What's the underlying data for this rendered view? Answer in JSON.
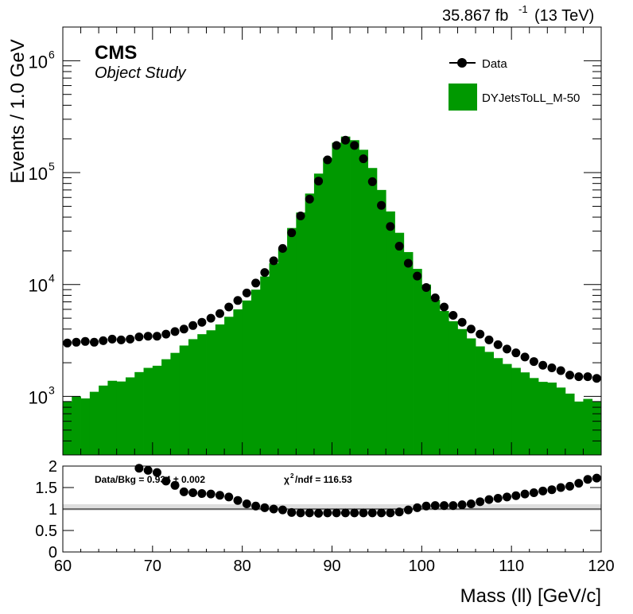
{
  "lumi_label": "35.867 fb",
  "lumi_exponent": "-1",
  "energy_label": "(13 TeV)",
  "cms_label": "CMS",
  "subtitle": "Object Study",
  "colors": {
    "mc_fill": "#009900",
    "data": "#000000"
  },
  "chart_data": [
    {
      "type": "bar",
      "name": "main",
      "ylabel": "Events / 1.0 GeV",
      "yscale": "log",
      "ylim": [
        300,
        2000000
      ],
      "xlim": [
        60,
        120
      ],
      "yticks": [
        {
          "value": 1000,
          "base": "10",
          "exp": "3"
        },
        {
          "value": 10000,
          "base": "10",
          "exp": "4"
        },
        {
          "value": 100000,
          "base": "10",
          "exp": "5"
        },
        {
          "value": 1000000,
          "base": "10",
          "exp": "6"
        }
      ],
      "legend": {
        "placement": "top-right",
        "entries": [
          {
            "label": "Data",
            "style": "marker"
          },
          {
            "label": "DYJetsToLL_M-50",
            "style": "fill"
          }
        ]
      },
      "bin_edges_start": 60,
      "bin_width": 1,
      "series": [
        {
          "name": "DYJetsToLL_M-50",
          "style": "filled-histogram",
          "values": [
            900,
            1000,
            960,
            1100,
            1250,
            1380,
            1360,
            1480,
            1650,
            1800,
            1880,
            2150,
            2450,
            2850,
            3250,
            3600,
            3900,
            4400,
            5150,
            6000,
            7200,
            9000,
            11800,
            15500,
            21000,
            32000,
            44000,
            65000,
            98000,
            135000,
            185000,
            210000,
            195000,
            160000,
            110000,
            70000,
            45000,
            29000,
            19500,
            13800,
            10000,
            7300,
            5800,
            4700,
            4000,
            3300,
            2800,
            2500,
            2200,
            1950,
            1800,
            1640,
            1460,
            1350,
            1330,
            1200,
            1060,
            900,
            950,
            900
          ]
        },
        {
          "name": "Data",
          "style": "marker",
          "values": [
            3000,
            3050,
            3100,
            3050,
            3150,
            3250,
            3200,
            3250,
            3400,
            3450,
            3450,
            3600,
            3800,
            4000,
            4300,
            4600,
            5000,
            5500,
            6300,
            7200,
            8400,
            10300,
            12800,
            16300,
            21000,
            29000,
            41000,
            58000,
            84000,
            130000,
            175000,
            195000,
            175000,
            133000,
            83000,
            51000,
            33000,
            22000,
            15500,
            11900,
            9400,
            7600,
            6300,
            5300,
            4600,
            4000,
            3600,
            3200,
            2900,
            2650,
            2450,
            2250,
            2050,
            1900,
            1800,
            1700,
            1550,
            1500,
            1500,
            1450
          ]
        }
      ]
    },
    {
      "type": "scatter",
      "name": "ratio",
      "xlabel": "Mass (ll) [GeV/c]",
      "ylim": [
        0,
        2
      ],
      "xlim": [
        60,
        120
      ],
      "yticks": [
        "0",
        "0.5",
        "1",
        "1.5",
        "2"
      ],
      "xticks": [
        "60",
        "70",
        "80",
        "90",
        "100",
        "110",
        "120"
      ],
      "reference_line": 1,
      "ratio_text": "Data/Bkg = 0.934  ± 0.002",
      "chi2_label": "/ndf = 116.53",
      "chi2_symbol": "χ",
      "chi2_exponent": "2",
      "series": [
        {
          "name": "Data/Bkg",
          "x_start": 60.5,
          "x_step": 1,
          "values": [
            null,
            null,
            null,
            null,
            null,
            null,
            null,
            null,
            1.95,
            1.9,
            1.85,
            1.65,
            1.55,
            1.4,
            1.38,
            1.36,
            1.35,
            1.32,
            1.28,
            1.2,
            1.12,
            1.07,
            1.03,
            1.0,
            0.98,
            0.92,
            0.91,
            0.91,
            0.9,
            0.91,
            0.91,
            0.91,
            0.91,
            0.91,
            0.91,
            0.91,
            0.91,
            0.93,
            0.98,
            1.03,
            1.07,
            1.08,
            1.08,
            1.08,
            1.1,
            1.12,
            1.17,
            1.22,
            1.25,
            1.28,
            1.31,
            1.35,
            1.38,
            1.42,
            1.45,
            1.5,
            1.53,
            1.6,
            1.69,
            1.72
          ]
        }
      ]
    }
  ]
}
